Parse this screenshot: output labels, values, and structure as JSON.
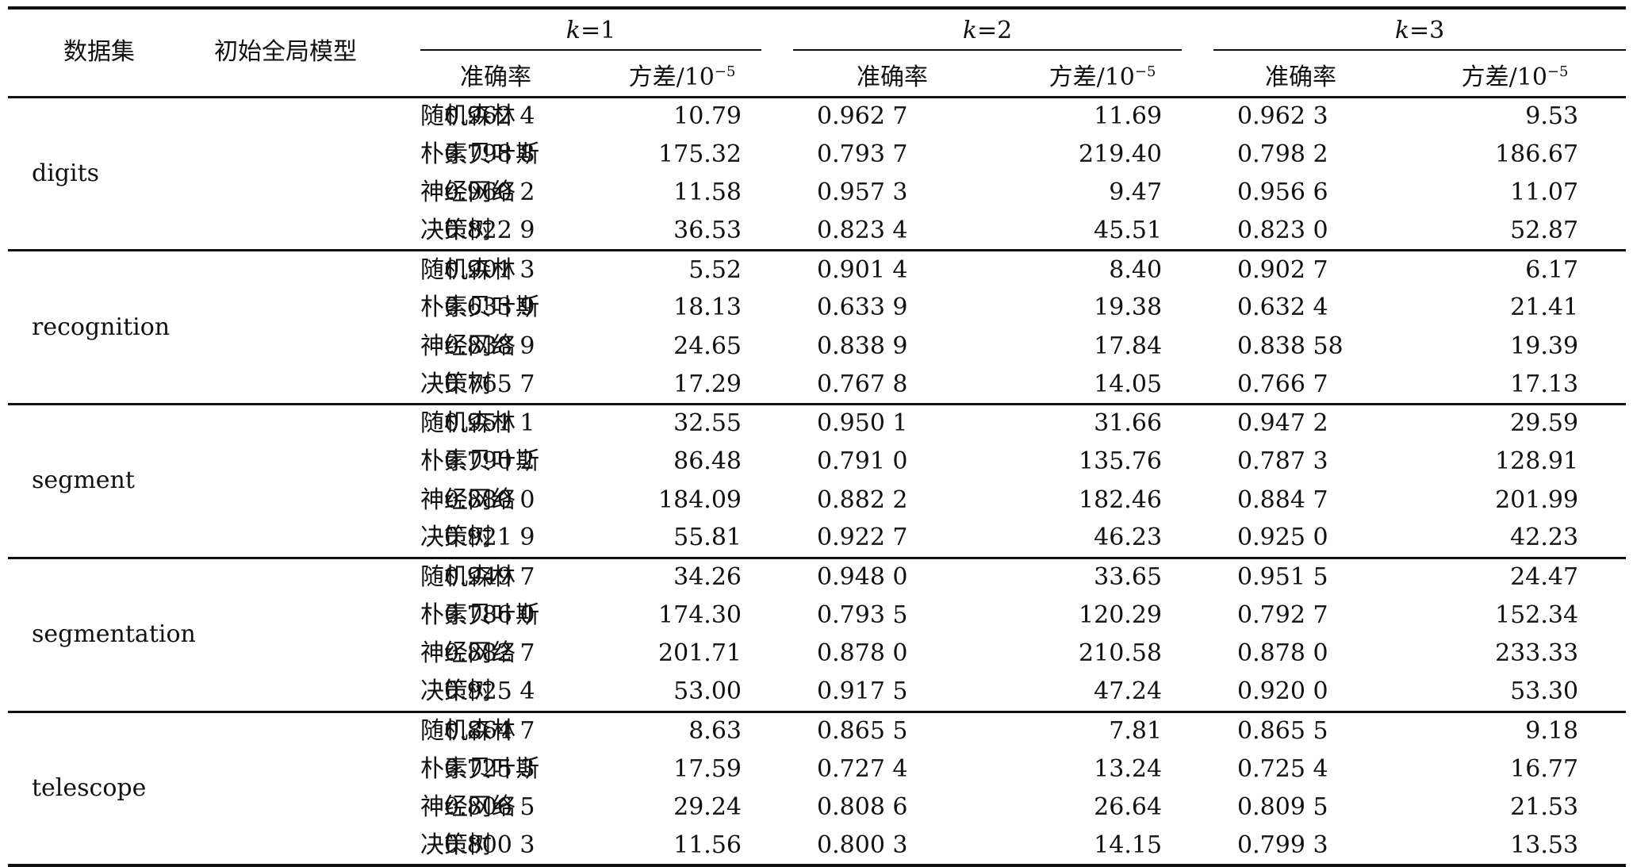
{
  "table": {
    "header": {
      "dataset": "数据集",
      "model": "初始全局模型",
      "k_groups": [
        {
          "k": "k",
          "eq": "=1",
          "acc": "准确率",
          "var": "方差/10",
          "var_exp": "−5"
        },
        {
          "k": "k",
          "eq": "=2",
          "acc": "准确率",
          "var": "方差/10",
          "var_exp": "−5"
        },
        {
          "k": "k",
          "eq": "=3",
          "acc": "准确率",
          "var": "方差/10",
          "var_exp": "−5"
        }
      ]
    },
    "groups": [
      {
        "dataset": "digits",
        "rows": [
          {
            "model": "随机森林",
            "v": [
              "0.962 4",
              "10.79",
              "0.962 7",
              "11.69",
              "0.962 3",
              "9.53"
            ]
          },
          {
            "model": "朴素贝叶斯",
            "v": [
              "0.798 8",
              "175.32",
              "0.793 7",
              "219.40",
              "0.798 2",
              "186.67"
            ]
          },
          {
            "model": "神经网络",
            "v": [
              "0.960 2",
              "11.58",
              "0.957 3",
              "9.47",
              "0.956 6",
              "11.07"
            ]
          },
          {
            "model": "决策树",
            "v": [
              "0.822 9",
              "36.53",
              "0.823 4",
              "45.51",
              "0.823 0",
              "52.87"
            ]
          }
        ]
      },
      {
        "dataset": "recognition",
        "rows": [
          {
            "model": "随机森林",
            "v": [
              "0.901 3",
              "5.52",
              "0.901 4",
              "8.40",
              "0.902 7",
              "6.17"
            ]
          },
          {
            "model": "朴素贝叶斯",
            "v": [
              "0.633 9",
              "18.13",
              "0.633 9",
              "19.38",
              "0.632 4",
              "21.41"
            ]
          },
          {
            "model": "神经网络",
            "v": [
              "0.838 9",
              "24.65",
              "0.838 9",
              "17.84",
              "0.838 58",
              "19.39"
            ]
          },
          {
            "model": "决策树",
            "v": [
              "0.765 7",
              "17.29",
              "0.767 8",
              "14.05",
              "0.766 7",
              "17.13"
            ]
          }
        ]
      },
      {
        "dataset": "segment",
        "rows": [
          {
            "model": "随机森林",
            "v": [
              "0.951 1",
              "32.55",
              "0.950 1",
              "31.66",
              "0.947 2",
              "29.59"
            ]
          },
          {
            "model": "朴素贝叶斯",
            "v": [
              "0.790 2",
              "86.48",
              "0.791 0",
              "135.76",
              "0.787 3",
              "128.91"
            ]
          },
          {
            "model": "神经网络",
            "v": [
              "0.880 0",
              "184.09",
              "0.882 2",
              "182.46",
              "0.884 7",
              "201.99"
            ]
          },
          {
            "model": "决策树",
            "v": [
              "0.921 9",
              "55.81",
              "0.922 7",
              "46.23",
              "0.925 0",
              "42.23"
            ]
          }
        ]
      },
      {
        "dataset": "segmentation",
        "rows": [
          {
            "model": "随机森林",
            "v": [
              "0.949 7",
              "34.26",
              "0.948 0",
              "33.65",
              "0.951 5",
              "24.47"
            ]
          },
          {
            "model": "朴素贝叶斯",
            "v": [
              "0.786 0",
              "174.30",
              "0.793 5",
              "120.29",
              "0.792 7",
              "152.34"
            ]
          },
          {
            "model": "神经网络",
            "v": [
              "0.882 7",
              "201.71",
              "0.878 0",
              "210.58",
              "0.878 0",
              "233.33"
            ]
          },
          {
            "model": "决策树",
            "v": [
              "0.925 4",
              "53.00",
              "0.917 5",
              "47.24",
              "0.920 0",
              "53.30"
            ]
          }
        ]
      },
      {
        "dataset": "telescope",
        "rows": [
          {
            "model": "随机森林",
            "v": [
              "0.864 7",
              "8.63",
              "0.865 5",
              "7.81",
              "0.865 5",
              "9.18"
            ]
          },
          {
            "model": "朴素贝叶斯",
            "v": [
              "0.725 3",
              "17.59",
              "0.727 4",
              "13.24",
              "0.725 4",
              "16.77"
            ]
          },
          {
            "model": "神经网络",
            "v": [
              "0.806 5",
              "29.24",
              "0.808 6",
              "26.64",
              "0.809 5",
              "21.53"
            ]
          },
          {
            "model": "决策树",
            "v": [
              "0.800 3",
              "11.56",
              "0.800 3",
              "14.15",
              "0.799 3",
              "13.53"
            ]
          }
        ]
      }
    ]
  }
}
